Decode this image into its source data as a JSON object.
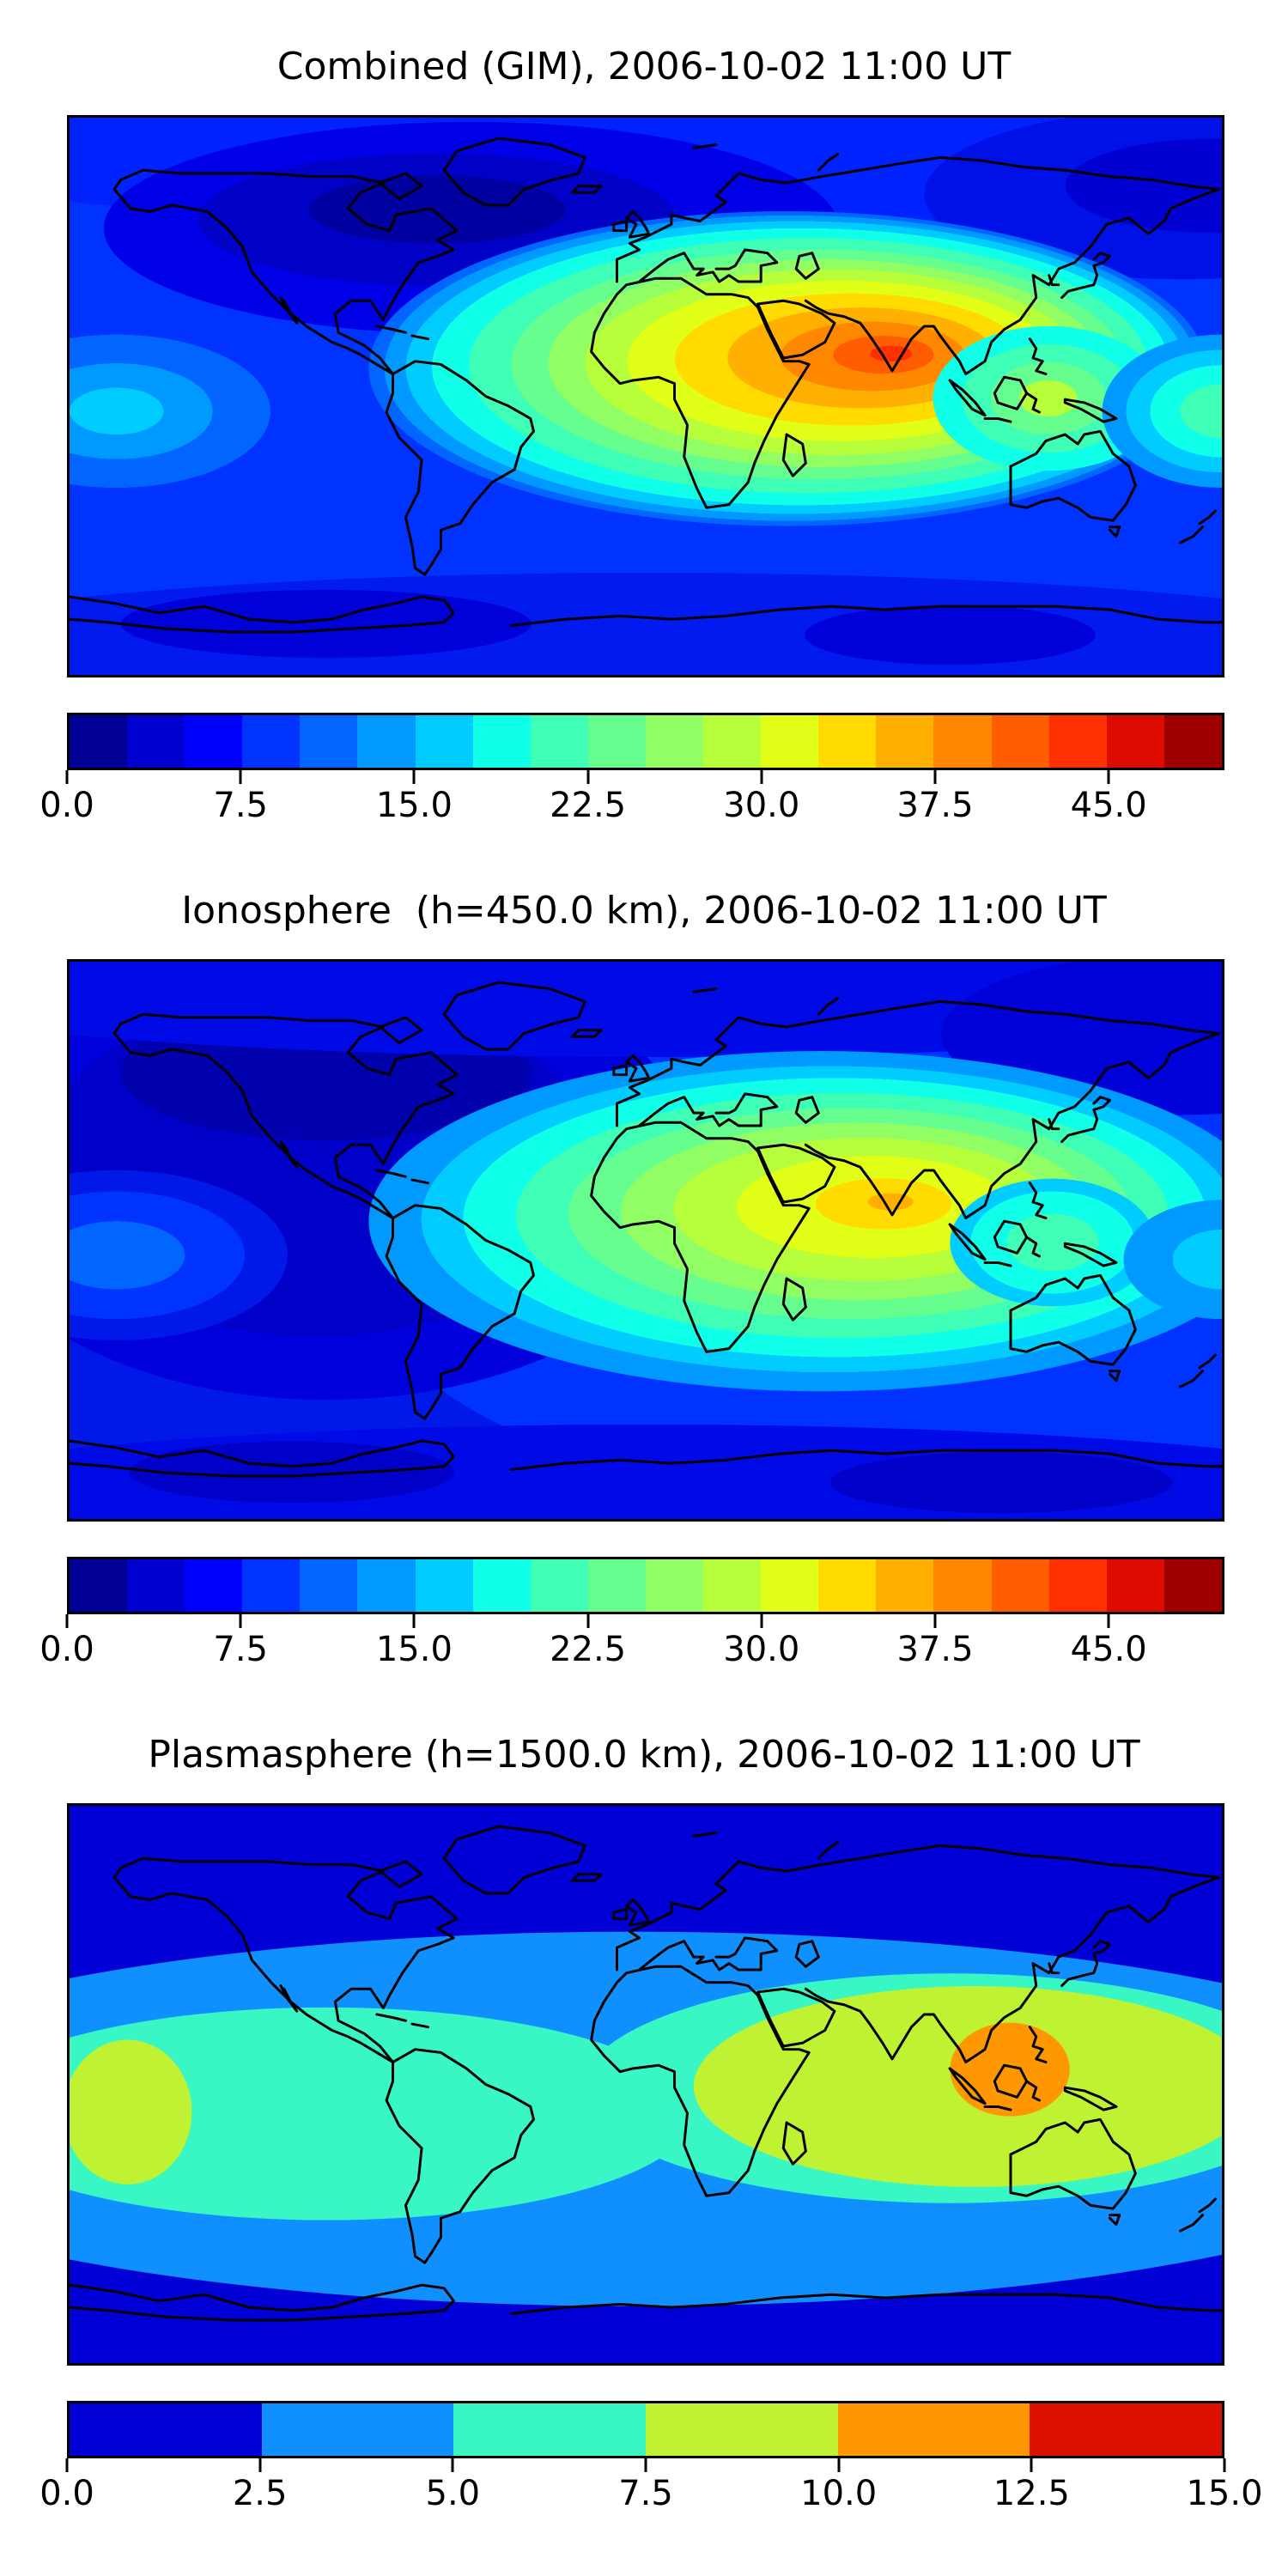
{
  "page": {
    "background": "#ffffff",
    "description": "Three stacked global filled-contour TEC maps with jet colorbars"
  },
  "colors": {
    "frame": "#000000",
    "coastline": "#000000",
    "title_text": "#000000",
    "tick_text": "#000000",
    "jet20": [
      "#000096",
      "#0000CF",
      "#0000FF",
      "#0033FF",
      "#0066FF",
      "#0099FF",
      "#00CCFF",
      "#0FFFE8",
      "#3FFFB7",
      "#66FF8F",
      "#91FF64",
      "#B7FF3B",
      "#E1FF17",
      "#FFDB00",
      "#FFB000",
      "#FF8800",
      "#FF5D00",
      "#FF3000",
      "#DD0A00",
      "#9E0000"
    ],
    "jet6": [
      "#0000D6",
      "#1090FF",
      "#38F7C4",
      "#BFF233",
      "#FF9800",
      "#DC1000"
    ]
  },
  "panels": [
    {
      "id": "combined",
      "title": "Combined (GIM), 2006-10-02 11:00 UT",
      "colorbar": {
        "vmin": 0,
        "vmax": 50,
        "step": 2.5,
        "segment_colors": [
          "#000096",
          "#0000CF",
          "#0000FF",
          "#0033FF",
          "#0066FF",
          "#0099FF",
          "#00CCFF",
          "#0FFFE8",
          "#3FFFB7",
          "#66FF8F",
          "#91FF64",
          "#B7FF3B",
          "#E1FF17",
          "#FFDB00",
          "#FFB000",
          "#FF8800",
          "#FF5D00",
          "#FF3000",
          "#DD0A00",
          "#9E0000"
        ],
        "ticks": [
          {
            "label": "0.0",
            "pos": 0
          },
          {
            "label": "7.5",
            "pos": 15
          },
          {
            "label": "15.0",
            "pos": 30
          },
          {
            "label": "22.5",
            "pos": 45
          },
          {
            "label": "30.0",
            "pos": 60
          },
          {
            "label": "37.5",
            "pos": 75
          },
          {
            "label": "45.0",
            "pos": 90
          }
        ]
      }
    },
    {
      "id": "ionosphere",
      "title": "Ionosphere  (h=450.0 km), 2006-10-02 11:00 UT",
      "colorbar": {
        "vmin": 0,
        "vmax": 50,
        "step": 2.5,
        "segment_colors": [
          "#000096",
          "#0000CF",
          "#0000FF",
          "#0033FF",
          "#0066FF",
          "#0099FF",
          "#00CCFF",
          "#0FFFE8",
          "#3FFFB7",
          "#66FF8F",
          "#91FF64",
          "#B7FF3B",
          "#E1FF17",
          "#FFDB00",
          "#FFB000",
          "#FF8800",
          "#FF5D00",
          "#FF3000",
          "#DD0A00",
          "#9E0000"
        ],
        "ticks": [
          {
            "label": "0.0",
            "pos": 0
          },
          {
            "label": "7.5",
            "pos": 15
          },
          {
            "label": "15.0",
            "pos": 30
          },
          {
            "label": "22.5",
            "pos": 45
          },
          {
            "label": "30.0",
            "pos": 60
          },
          {
            "label": "37.5",
            "pos": 75
          },
          {
            "label": "45.0",
            "pos": 90
          }
        ]
      }
    },
    {
      "id": "plasmasphere",
      "title": "Plasmasphere (h=1500.0 km), 2006-10-02 11:00 UT",
      "colorbar": {
        "vmin": 0,
        "vmax": 15,
        "step": 2.5,
        "segment_colors": [
          "#0000D6",
          "#1090FF",
          "#38F7C4",
          "#BFF233",
          "#FF9800",
          "#DC1000"
        ],
        "ticks": [
          {
            "label": "0.0",
            "pos": 0
          },
          {
            "label": "2.5",
            "pos": 16.667
          },
          {
            "label": "5.0",
            "pos": 33.333
          },
          {
            "label": "7.5",
            "pos": 50
          },
          {
            "label": "10.0",
            "pos": 66.667
          },
          {
            "label": "12.5",
            "pos": 83.333
          },
          {
            "label": "15.0",
            "pos": 100
          }
        ]
      }
    }
  ],
  "chart_data": [
    {
      "type": "heatmap",
      "subtype": "filled_contour_world_map",
      "title": "Combined (GIM), 2006-10-02 11:00 UT",
      "projection": "equirectangular",
      "lon_range": [
        -180,
        180
      ],
      "lat_range": [
        -87.5,
        87.5
      ],
      "colormap": "jet",
      "contour_levels": {
        "min": 0,
        "max": 50,
        "step": 2.5
      },
      "colorbar_ticks": [
        0.0,
        7.5,
        15.0,
        22.5,
        30.0,
        37.5,
        45.0
      ],
      "grid": false,
      "legend": "horizontal colorbar below map",
      "features": [
        {
          "feature": "global_maximum",
          "location": "Arabian Sea / NW India (~65E, 15N)",
          "value_approx": 46
        },
        {
          "feature": "crest_band",
          "location": "low latitudes from West Africa across Middle East to Southeast Asia",
          "value_range": [
            25,
            45
          ]
        },
        {
          "feature": "secondary_peak",
          "location": "maritime continent / Borneo (~113E, 2N)",
          "value_approx": 32
        },
        {
          "feature": "pacific_patch",
          "location": "central equatorial Pacific at left map edge (~175W, 5S)",
          "value_approx": 18
        },
        {
          "feature": "northern_minimum",
          "location": "Hudson Bay / Arctic Canada and NE Siberia",
          "value_approx": 3
        },
        {
          "feature": "southern_low_band",
          "location": "circumpolar band near 60S",
          "value_approx": 5
        }
      ]
    },
    {
      "type": "heatmap",
      "subtype": "filled_contour_world_map",
      "title": "Ionosphere  (h=450.0 km), 2006-10-02 11:00 UT",
      "projection": "equirectangular",
      "lon_range": [
        -180,
        180
      ],
      "lat_range": [
        -87.5,
        87.5
      ],
      "colormap": "jet",
      "contour_levels": {
        "min": 0,
        "max": 50,
        "step": 2.5
      },
      "colorbar_ticks": [
        0.0,
        7.5,
        15.0,
        22.5,
        30.0,
        37.5,
        45.0
      ],
      "grid": false,
      "legend": "horizontal colorbar below map",
      "features": [
        {
          "feature": "global_maximum",
          "location": "Arabian Sea (~60E, 15N)",
          "value_approx": 33
        },
        {
          "feature": "crest_band",
          "location": "Africa to India / Bay of Bengal, lat ~25N to 15S",
          "value_range": [
            15,
            32
          ]
        },
        {
          "feature": "secondary_patch",
          "location": "Borneo / maritime continent",
          "value_approx": 22
        },
        {
          "feature": "pacific_patch",
          "location": "central equatorial Pacific at left map edge",
          "value_approx": 10
        },
        {
          "feature": "western_minimum",
          "location": "Americas / eastern Pacific (night side)",
          "value_approx": 2
        },
        {
          "feature": "southern_low_band",
          "location": "circumpolar band near 60S",
          "value_approx": 4
        }
      ]
    },
    {
      "type": "heatmap",
      "subtype": "filled_contour_world_map",
      "title": "Plasmasphere (h=1500.0 km), 2006-10-02 11:00 UT",
      "projection": "equirectangular",
      "lon_range": [
        -180,
        180
      ],
      "lat_range": [
        -87.5,
        87.5
      ],
      "colormap": "jet",
      "contour_levels": {
        "min": 0,
        "max": 15,
        "step": 2.5
      },
      "colorbar_ticks": [
        0.0,
        2.5,
        5.0,
        7.5,
        10.0,
        12.5,
        15.0
      ],
      "grid": false,
      "legend": "horizontal colorbar below map",
      "features": [
        {
          "feature": "global_maximum",
          "location": "maritime continent / Indonesia (~110E, 5N)",
          "value_approx": 12,
          "band": "10-12.5 orange"
        },
        {
          "feature": "enhanced_band",
          "location": "low latitudes ~60E to 165E around the maximum",
          "value_range": [
            7.5,
            10
          ]
        },
        {
          "feature": "pacific_enhancement",
          "location": "central Pacific at left map edge (~170W, 10S)",
          "value_range": [
            7.5,
            10
          ]
        },
        {
          "feature": "equatorial_band",
          "location": "continuous low-latitude belt",
          "value_range": [
            5,
            7.5
          ]
        },
        {
          "feature": "midlatitude_band",
          "location": "~30-50 latitude both hemispheres",
          "value_range": [
            2.5,
            5
          ]
        },
        {
          "feature": "polar_minimum",
          "location": "poleward of ~50 latitude both hemispheres",
          "value_range": [
            0,
            2.5
          ]
        }
      ]
    }
  ]
}
